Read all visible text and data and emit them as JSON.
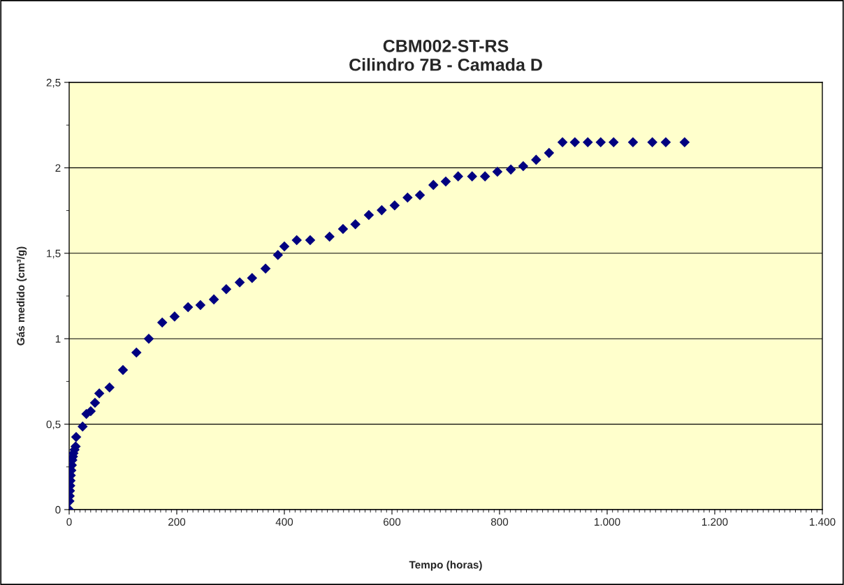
{
  "chart_data": {
    "type": "scatter",
    "title": "CBM002-ST-RS\nCilindro 7B - Camada D",
    "xlabel": "Tempo (horas)",
    "ylabel": "Gás medido (cm³/g)",
    "x": [
      0,
      0.5,
      1,
      1.5,
      2,
      2.5,
      3,
      4,
      5,
      6,
      7,
      8,
      10,
      12,
      13,
      25,
      32,
      40,
      48,
      56,
      75,
      100,
      125,
      148,
      173,
      196,
      221,
      244,
      269,
      292,
      317,
      340,
      365,
      388,
      400,
      423,
      448,
      484,
      509,
      532,
      557,
      581,
      605,
      629,
      652,
      677,
      700,
      723,
      749,
      773,
      796,
      821,
      844,
      868,
      892,
      917,
      940,
      964,
      988,
      1012,
      1048,
      1084,
      1109,
      1144
    ],
    "series": [
      {
        "color": "#000080",
        "values": [
          0,
          0.05,
          0.08,
          0.11,
          0.14,
          0.17,
          0.2,
          0.23,
          0.26,
          0.29,
          0.31,
          0.33,
          0.35,
          0.37,
          0.425,
          0.486,
          0.56,
          0.576,
          0.625,
          0.68,
          0.715,
          0.817,
          0.919,
          1.0,
          1.095,
          1.13,
          1.185,
          1.197,
          1.23,
          1.29,
          1.33,
          1.355,
          1.41,
          1.49,
          1.54,
          1.577,
          1.577,
          1.597,
          1.642,
          1.67,
          1.724,
          1.752,
          1.78,
          1.826,
          1.84,
          1.9,
          1.92,
          1.95,
          1.95,
          1.95,
          1.977,
          1.99,
          2.01,
          2.047,
          2.087,
          2.15,
          2.15,
          2.15,
          2.15,
          2.15,
          2.15,
          2.15,
          2.15,
          2.15
        ]
      }
    ],
    "xlim": [
      0,
      1400
    ],
    "xticks": [
      0,
      200,
      400,
      600,
      800,
      {
        "value": 1000,
        "label": "1.000"
      },
      {
        "value": 1200,
        "label": "1.200"
      },
      {
        "value": 1400,
        "label": "1.400"
      }
    ],
    "ylim": [
      0,
      2.5
    ],
    "yticks": [
      0,
      {
        "value": 0.5,
        "label": "0,5"
      },
      1,
      {
        "value": 1.5,
        "label": "1,5"
      },
      2,
      {
        "value": 2.5,
        "label": "2,5"
      }
    ],
    "grid": "y",
    "marker": "diamond",
    "legend": false
  }
}
